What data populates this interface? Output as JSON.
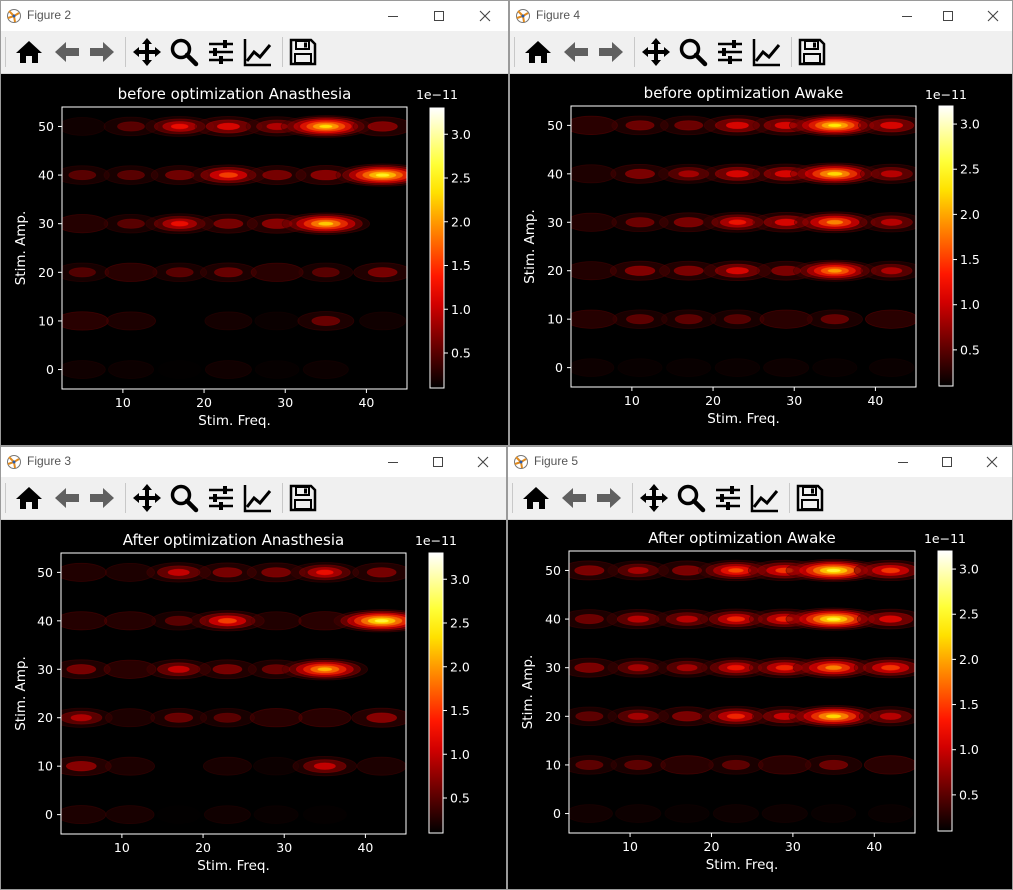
{
  "windows": [
    {
      "id": "fig2",
      "window_title": "Figure 2",
      "chart_data": {
        "type": "heatmap",
        "title": "before optimization Anasthesia",
        "xlabel": "Stim. Freq.",
        "ylabel": "Stim. Amp.",
        "xlim": [
          2.5,
          45
        ],
        "ylim": [
          -4,
          54
        ],
        "xticks": [
          10,
          20,
          30,
          40
        ],
        "yticks": [
          0,
          10,
          20,
          30,
          40,
          50
        ],
        "colorbar": {
          "ticks": [
            "0.5",
            "1.0",
            "1.5",
            "2.0",
            "2.5",
            "3.0"
          ],
          "tick_values": [
            0.5,
            1.0,
            1.5,
            2.0,
            2.5,
            3.0
          ],
          "range": [
            0.1,
            3.3
          ],
          "offset_label": "1e−11",
          "colormap": "hot"
        },
        "x": [
          5,
          11,
          17,
          23,
          29,
          35,
          42
        ],
        "y": [
          0,
          10,
          20,
          30,
          40,
          50
        ],
        "values": [
          [
            0.2,
            0.15,
            0.03,
            0.2,
            0.08,
            0.15,
            0.0
          ],
          [
            0.5,
            0.35,
            0.0,
            0.25,
            0.12,
            0.7,
            0.2
          ],
          [
            0.55,
            0.5,
            0.6,
            0.7,
            0.5,
            0.6,
            0.8
          ],
          [
            0.45,
            0.6,
            1.3,
            0.8,
            0.9,
            2.3,
            0.0
          ],
          [
            0.6,
            0.6,
            0.75,
            1.6,
            0.8,
            0.9,
            2.6
          ],
          [
            0.2,
            0.6,
            1.3,
            1.25,
            1.0,
            2.4,
            0.85
          ]
        ]
      }
    },
    {
      "id": "fig4",
      "window_title": "Figure 4",
      "chart_data": {
        "type": "heatmap",
        "title": "before optimization Awake",
        "xlabel": "Stim. Freq.",
        "ylabel": "Stim. Amp.",
        "xlim": [
          2.5,
          45
        ],
        "ylim": [
          -4,
          54
        ],
        "xticks": [
          10,
          20,
          30,
          40
        ],
        "yticks": [
          0,
          10,
          20,
          30,
          40,
          50
        ],
        "colorbar": {
          "ticks": [
            "0.5",
            "1.0",
            "1.5",
            "2.0",
            "2.5",
            "3.0"
          ],
          "tick_values": [
            0.5,
            1.0,
            1.5,
            2.0,
            2.5,
            3.0
          ],
          "range": [
            0.1,
            3.2
          ],
          "offset_label": "1e−11",
          "colormap": "hot"
        },
        "x": [
          5,
          11,
          17,
          23,
          29,
          35,
          42
        ],
        "y": [
          0,
          10,
          20,
          30,
          40,
          50
        ],
        "values": [
          [
            0.15,
            0.1,
            0.1,
            0.12,
            0.15,
            0.1,
            0.12
          ],
          [
            0.45,
            0.6,
            0.6,
            0.55,
            0.5,
            0.65,
            0.5
          ],
          [
            0.4,
            0.85,
            0.8,
            1.2,
            0.8,
            2.0,
            0.95
          ],
          [
            0.4,
            0.7,
            0.8,
            1.3,
            1.2,
            1.9,
            1.0
          ],
          [
            0.35,
            0.8,
            0.9,
            1.2,
            1.2,
            2.3,
            1.0
          ],
          [
            0.5,
            0.7,
            0.7,
            1.2,
            1.2,
            2.4,
            1.2
          ]
        ]
      }
    },
    {
      "id": "fig3",
      "window_title": "Figure 3",
      "chart_data": {
        "type": "heatmap",
        "title": "After optimization Anasthesia",
        "xlabel": "Stim. Freq.",
        "ylabel": "Stim. Amp.",
        "xlim": [
          2.5,
          45
        ],
        "ylim": [
          -4,
          54
        ],
        "xticks": [
          10,
          20,
          30,
          40
        ],
        "yticks": [
          0,
          10,
          20,
          30,
          40,
          50
        ],
        "colorbar": {
          "ticks": [
            "0.5",
            "1.0",
            "1.5",
            "2.0",
            "2.5",
            "3.0"
          ],
          "tick_values": [
            0.5,
            1.0,
            1.5,
            2.0,
            2.5,
            3.0
          ],
          "range": [
            0.1,
            3.3
          ],
          "offset_label": "1e−11",
          "colormap": "hot"
        },
        "x": [
          5,
          11,
          17,
          23,
          29,
          35,
          42
        ],
        "y": [
          0,
          10,
          20,
          30,
          40,
          50
        ],
        "values": [
          [
            0.35,
            0.3,
            0.03,
            0.2,
            0.1,
            0.05,
            0.0
          ],
          [
            0.9,
            0.35,
            0.0,
            0.3,
            0.15,
            1.1,
            0.35
          ],
          [
            1.0,
            0.35,
            0.7,
            0.6,
            0.5,
            0.5,
            0.9
          ],
          [
            0.8,
            0.5,
            1.1,
            0.8,
            0.7,
            2.2,
            0.0
          ],
          [
            0.45,
            0.45,
            0.6,
            1.6,
            0.4,
            0.5,
            2.7
          ],
          [
            0.4,
            0.35,
            1.1,
            0.8,
            0.8,
            1.3,
            0.8
          ]
        ]
      }
    },
    {
      "id": "fig5",
      "window_title": "Figure 5",
      "chart_data": {
        "type": "heatmap",
        "title": "After optimization Awake",
        "xlabel": "Stim. Freq.",
        "ylabel": "Stim. Amp.",
        "xlim": [
          2.5,
          45
        ],
        "ylim": [
          -4,
          54
        ],
        "xticks": [
          10,
          20,
          30,
          40
        ],
        "yticks": [
          0,
          10,
          20,
          30,
          40,
          50
        ],
        "colorbar": {
          "ticks": [
            "0.5",
            "1.0",
            "1.5",
            "2.0",
            "2.5",
            "3.0"
          ],
          "tick_values": [
            0.5,
            1.0,
            1.5,
            2.0,
            2.5,
            3.0
          ],
          "range": [
            0.1,
            3.2
          ],
          "offset_label": "1e−11",
          "colormap": "hot"
        },
        "x": [
          5,
          11,
          17,
          23,
          29,
          35,
          42
        ],
        "y": [
          0,
          10,
          20,
          30,
          40,
          50
        ],
        "values": [
          [
            0.2,
            0.15,
            0.1,
            0.15,
            0.15,
            0.1,
            0.1
          ],
          [
            0.6,
            0.6,
            0.5,
            0.6,
            0.5,
            0.7,
            0.5
          ],
          [
            0.6,
            0.9,
            0.8,
            1.4,
            1.1,
            2.3,
            1.0
          ],
          [
            0.8,
            0.9,
            0.9,
            1.3,
            1.4,
            1.9,
            1.5
          ],
          [
            0.7,
            1.0,
            1.0,
            1.4,
            1.4,
            2.6,
            1.2
          ],
          [
            0.8,
            0.9,
            0.8,
            1.6,
            1.5,
            2.6,
            1.5
          ]
        ]
      }
    }
  ]
}
